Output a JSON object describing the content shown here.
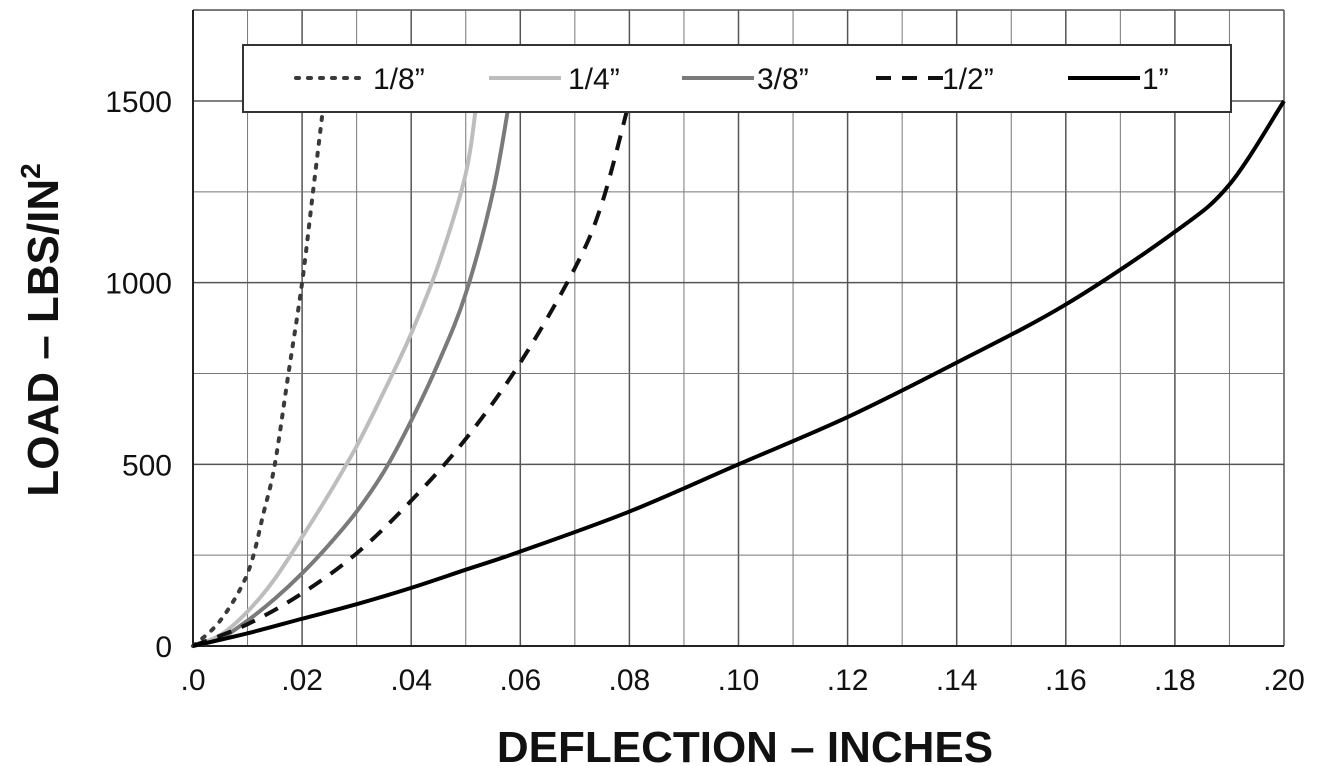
{
  "chart_data": {
    "type": "line",
    "title": "",
    "xlabel": "DEFLECTION – INCHES",
    "ylabel_main": "LOAD – LBS/IN",
    "ylabel_sup": "2",
    "xlim": [
      0,
      0.2
    ],
    "ylim": [
      0,
      1500
    ],
    "grid": true,
    "x_ticks": [
      {
        "v": 0.0,
        "label": ".0"
      },
      {
        "v": 0.02,
        "label": ".02"
      },
      {
        "v": 0.04,
        "label": ".04"
      },
      {
        "v": 0.06,
        "label": ".06"
      },
      {
        "v": 0.08,
        "label": ".08"
      },
      {
        "v": 0.1,
        "label": ".10"
      },
      {
        "v": 0.12,
        "label": ".12"
      },
      {
        "v": 0.14,
        "label": ".14"
      },
      {
        "v": 0.16,
        "label": ".16"
      },
      {
        "v": 0.18,
        "label": ".18"
      },
      {
        "v": 0.2,
        "label": ".20"
      }
    ],
    "y_ticks": [
      {
        "v": 0,
        "label": "0"
      },
      {
        "v": 500,
        "label": "500"
      },
      {
        "v": 1000,
        "label": "1000"
      },
      {
        "v": 1500,
        "label": "1500"
      }
    ],
    "legend_position": "top",
    "series": [
      {
        "name": "1/8”",
        "color": "#3a3a3a",
        "style": "dotted",
        "x": [
          0,
          0.005,
          0.01,
          0.013,
          0.015,
          0.0175,
          0.02,
          0.022,
          0.024
        ],
        "y": [
          0,
          70,
          200,
          370,
          500,
          750,
          1000,
          1250,
          1500
        ]
      },
      {
        "name": "1/4”",
        "color": "#bdbdbd",
        "style": "solid",
        "x": [
          0,
          0.005,
          0.01,
          0.015,
          0.02,
          0.025,
          0.03,
          0.035,
          0.04,
          0.045,
          0.05,
          0.052
        ],
        "y": [
          0,
          30,
          95,
          185,
          300,
          420,
          550,
          700,
          860,
          1050,
          1300,
          1500
        ]
      },
      {
        "name": "3/8”",
        "color": "#7a7a7a",
        "style": "solid",
        "x": [
          0,
          0.005,
          0.01,
          0.015,
          0.02,
          0.025,
          0.03,
          0.035,
          0.04,
          0.045,
          0.05,
          0.055,
          0.058
        ],
        "y": [
          0,
          20,
          70,
          130,
          200,
          280,
          370,
          480,
          620,
          780,
          970,
          1250,
          1500
        ]
      },
      {
        "name": "1/2”",
        "color": "#111111",
        "style": "dashed",
        "x": [
          0,
          0.01,
          0.02,
          0.03,
          0.04,
          0.05,
          0.06,
          0.07,
          0.075,
          0.08
        ],
        "y": [
          0,
          60,
          145,
          255,
          400,
          570,
          780,
          1040,
          1220,
          1500
        ]
      },
      {
        "name": "1”",
        "color": "#000000",
        "style": "solid",
        "x": [
          0,
          0.01,
          0.02,
          0.03,
          0.04,
          0.05,
          0.06,
          0.08,
          0.1,
          0.12,
          0.14,
          0.16,
          0.18,
          0.19,
          0.2
        ],
        "y": [
          0,
          35,
          75,
          115,
          160,
          210,
          260,
          370,
          500,
          630,
          780,
          940,
          1140,
          1270,
          1500
        ]
      }
    ]
  }
}
